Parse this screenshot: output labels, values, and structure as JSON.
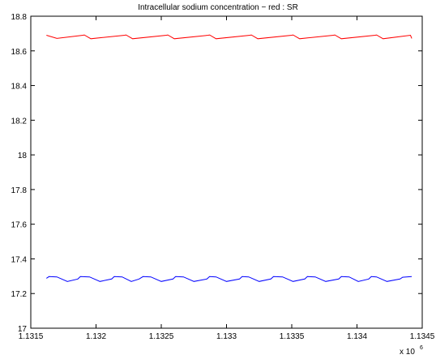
{
  "chart_data": {
    "type": "line",
    "title": "Intracellular sodium concentration − red : SR",
    "xlabel": "",
    "ylabel": "",
    "x_multiplier_label": "x 10",
    "x_multiplier_exponent": "6",
    "xlim": [
      1131500,
      1134500
    ],
    "ylim": [
      17,
      18.8
    ],
    "x_tick_values": [
      1131500,
      1132000,
      1132500,
      1133000,
      1133500,
      1134000,
      1134500
    ],
    "x_tick_labels": [
      "1.1315",
      "1.132",
      "1.1325",
      "1.133",
      "1.1335",
      "1.134",
      "1.1345"
    ],
    "y_tick_values": [
      17,
      17.2,
      17.4,
      17.6,
      17.8,
      18,
      18.2,
      18.4,
      18.6,
      18.8
    ],
    "y_tick_labels": [
      "17",
      "17.2",
      "17.4",
      "17.6",
      "17.8",
      "18",
      "18.2",
      "18.4",
      "18.6",
      "18.8"
    ],
    "grid": false,
    "colors": {
      "red_series": "#ff0000",
      "blue_series": "#0000ff",
      "axes": "#000000"
    },
    "series": [
      {
        "color": "red",
        "x": [
          1131620,
          1131700,
          1131900,
          1131910,
          1131960,
          1132220,
          1132230,
          1132280,
          1132540,
          1132550,
          1132600,
          1132860,
          1132870,
          1132920,
          1133180,
          1133190,
          1133240,
          1133500,
          1133510,
          1133560,
          1133820,
          1133830,
          1133880,
          1134140,
          1134150,
          1134200,
          1134410,
          1134420
        ],
        "y": [
          18.69,
          18.672,
          18.69,
          18.692,
          18.67,
          18.69,
          18.692,
          18.67,
          18.69,
          18.692,
          18.67,
          18.69,
          18.692,
          18.67,
          18.69,
          18.692,
          18.67,
          18.69,
          18.692,
          18.67,
          18.69,
          18.692,
          18.67,
          18.69,
          18.692,
          18.67,
          18.69,
          18.672
        ]
      },
      {
        "color": "blue",
        "x": [
          1131620,
          1131640,
          1131700,
          1131780,
          1131860,
          1131880,
          1131950,
          1132030,
          1132120,
          1132140,
          1132200,
          1132270,
          1132330,
          1132360,
          1132420,
          1132500,
          1132590,
          1132610,
          1132670,
          1132750,
          1132850,
          1132870,
          1132920,
          1133000,
          1133100,
          1133120,
          1133170,
          1133250,
          1133340,
          1133360,
          1133430,
          1133510,
          1133600,
          1133620,
          1133680,
          1133760,
          1133860,
          1133880,
          1133940,
          1134010,
          1134090,
          1134110,
          1134150,
          1134230,
          1134330,
          1134350,
          1134420
        ],
        "y": [
          17.288,
          17.298,
          17.296,
          17.27,
          17.284,
          17.298,
          17.296,
          17.27,
          17.284,
          17.298,
          17.296,
          17.27,
          17.284,
          17.298,
          17.296,
          17.27,
          17.284,
          17.298,
          17.296,
          17.27,
          17.284,
          17.298,
          17.296,
          17.27,
          17.284,
          17.298,
          17.296,
          17.27,
          17.284,
          17.298,
          17.296,
          17.27,
          17.284,
          17.298,
          17.296,
          17.27,
          17.284,
          17.298,
          17.296,
          17.27,
          17.284,
          17.298,
          17.296,
          17.27,
          17.284,
          17.294,
          17.298
        ]
      }
    ]
  }
}
